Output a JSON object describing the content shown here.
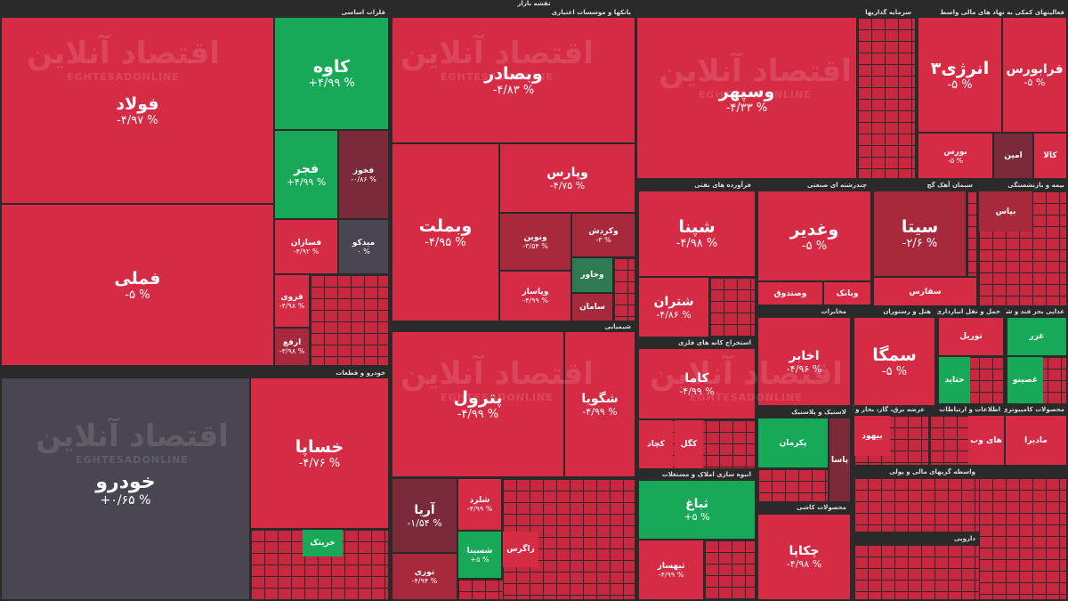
{
  "header": {
    "title": "نقشه بازار"
  },
  "watermark": {
    "fa": "اقتصاد آنلاین",
    "en": "EGHTESADONLINE"
  },
  "sectors": [
    {
      "title": "فلزات اساسی",
      "tiles": [
        {
          "name": "فولاد",
          "change": "-۴/۹۷ %"
        },
        {
          "name": "فملی",
          "change": "-۵ %"
        },
        {
          "name": "کاوه",
          "change": "+۴/۹۹ %"
        },
        {
          "name": "فجر",
          "change": "+۴/۹۹ %"
        },
        {
          "name": "فخوز",
          "change": "-۰/۸۶ %"
        },
        {
          "name": "فسازان",
          "change": "-۴/۹۲ %"
        },
        {
          "name": "میدکو",
          "change": "۰ %"
        },
        {
          "name": "فروی",
          "change": "-۴/۹۸ %"
        },
        {
          "name": "ارفع",
          "change": "-۳/۹۸ %"
        }
      ]
    },
    {
      "title": "خودرو و قطعات",
      "tiles": [
        {
          "name": "خودرو",
          "change": "+۰/۶۵ %"
        },
        {
          "name": "خساپا",
          "change": "-۴/۷۶ %"
        },
        {
          "name": "خریتک"
        }
      ]
    },
    {
      "title": "بانکها و موسسات اعتباری",
      "tiles": [
        {
          "name": "وبصادر",
          "change": "-۴/۸۳ %"
        },
        {
          "name": "وبملت",
          "change": "-۴/۹۵ %"
        },
        {
          "name": "وپارس",
          "change": "-۴/۷۵ %"
        },
        {
          "name": "ونوین",
          "change": "-۳/۵۴ %"
        },
        {
          "name": "وکردش",
          "change": "-۳ %"
        },
        {
          "name": "وپاسار",
          "change": "-۴/۹۹ %"
        },
        {
          "name": "وخاور"
        },
        {
          "name": "سامان"
        }
      ]
    },
    {
      "title": "شیمیایی",
      "tiles": [
        {
          "name": "پترول",
          "change": "-۴/۹۹ %"
        },
        {
          "name": "شگویا",
          "change": "-۴/۹۹ %"
        },
        {
          "name": "آریا",
          "change": "-۱/۵۴ %"
        },
        {
          "name": "شلرد",
          "change": "-۴/۹۹ %"
        },
        {
          "name": "شسینا",
          "change": "+۵ %"
        },
        {
          "name": "زاگرس"
        },
        {
          "name": "نوری",
          "change": "-۴/۹۴ %"
        }
      ]
    },
    {
      "title": "سرمایه گذاریها",
      "tiles": [
        {
          "name": "وسپهر",
          "change": "-۴/۳۳ %"
        }
      ]
    },
    {
      "title": "فعالیتهای کمکی به نهاد های مالی واسط",
      "tiles": [
        {
          "name": "انرژی۳",
          "change": "-۵ %"
        },
        {
          "name": "فرابورس",
          "change": "-۵ %"
        },
        {
          "name": "بورس",
          "change": "-۵ %"
        },
        {
          "name": "امین"
        },
        {
          "name": "کالا"
        }
      ]
    },
    {
      "title": "فرآورده های نفتی",
      "tiles": [
        {
          "name": "شپنا",
          "change": "-۴/۹۸ %"
        },
        {
          "name": "شتران",
          "change": "-۴/۸۶ %"
        }
      ]
    },
    {
      "title": "چندرشته ای صنعتی",
      "tiles": [
        {
          "name": "وغدیر",
          "change": "-۵ %"
        },
        {
          "name": "وصندوق"
        },
        {
          "name": "وبانک"
        }
      ]
    },
    {
      "title": "سیمان آهک گچ",
      "tiles": [
        {
          "name": "سیتا",
          "change": "-۲/۶ %"
        },
        {
          "name": "سفارس"
        }
      ]
    },
    {
      "title": "بیمه و بازنشستگی",
      "tiles": [
        {
          "name": "بپاس"
        }
      ]
    },
    {
      "title": "استخراج کانه های فلزی",
      "tiles": [
        {
          "name": "کاما",
          "change": "-۴/۹۹ %"
        },
        {
          "name": "کچاد"
        },
        {
          "name": "کگل"
        }
      ]
    },
    {
      "title": "مخابرات",
      "tiles": [
        {
          "name": "اخابر",
          "change": "-۴/۹۶ %"
        }
      ]
    },
    {
      "title": "هتل و رستوران",
      "tiles": [
        {
          "name": "سمگا",
          "change": "-۵ %"
        }
      ]
    },
    {
      "title": "حمل و نقل انبارداری",
      "tiles": [
        {
          "name": "توریل"
        },
        {
          "name": "حتاید"
        }
      ]
    },
    {
      "title": "غذایی بجز قند و شکر",
      "tiles": [
        {
          "name": "غزر"
        },
        {
          "name": "غصینو"
        }
      ]
    },
    {
      "title": "لاستیک و پلاستیک",
      "tiles": [
        {
          "name": "پکرمان"
        },
        {
          "name": "پاسا"
        }
      ]
    },
    {
      "title": "محصولات کاشی",
      "tiles": [
        {
          "name": "چکاپا",
          "change": "-۴/۹۸ %"
        }
      ]
    },
    {
      "title": "انبوه سازی املاک و مستغلات",
      "tiles": [
        {
          "name": "ثباغ",
          "change": "+۵ %"
        },
        {
          "name": "ثبهساز",
          "change": "-۴/۹۹ %"
        }
      ]
    },
    {
      "title": "عرضه برق، گاز، بخار و آب گرم",
      "tiles": [
        {
          "name": "بیهود"
        }
      ]
    },
    {
      "title": "اطلاعات و ارتباطات",
      "tiles": [
        {
          "name": "های وب"
        }
      ]
    },
    {
      "title": "محصولات کامپیوتری",
      "tiles": [
        {
          "name": "مادیرا"
        }
      ]
    },
    {
      "title": "واسطه گریهای مالی و پولی",
      "tiles": []
    },
    {
      "title": "دارویی",
      "tiles": []
    }
  ]
}
